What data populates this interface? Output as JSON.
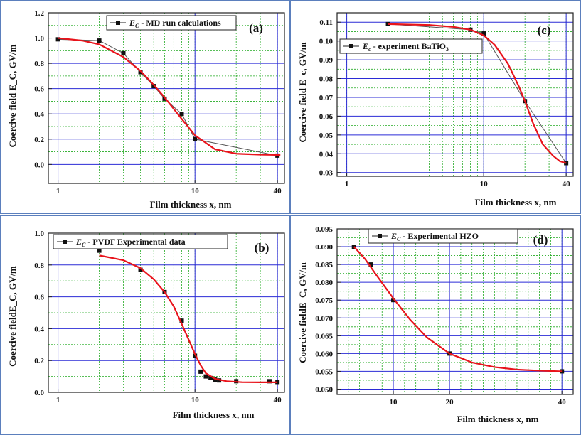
{
  "figure": {
    "accent_colors": {
      "fit_line": "#e8131b",
      "data_line": "#555555",
      "marker": "#111111",
      "major_grid": "#2b2bd6",
      "minor_grid": "#22aa22",
      "frame": "#5b7fbd"
    }
  },
  "chart_data": [
    {
      "id": "a",
      "type": "line",
      "panel_label": "(a)",
      "ylabel": "Coercive field E_C, GV/m",
      "xlabel": "Film thickness x, nm",
      "xscale": "log",
      "xlim": [
        0.85,
        45
      ],
      "ylim": [
        -0.15,
        1.2
      ],
      "xticks": [
        1,
        10,
        40
      ],
      "xtick_labels": [
        "1",
        "10",
        "40"
      ],
      "yticks": [
        0.0,
        0.2,
        0.4,
        0.6,
        0.8,
        1.0,
        1.2
      ],
      "ytick_labels": [
        "0.0",
        "0.2",
        "0.4",
        "0.6",
        "0.8",
        "1.0",
        "1.2"
      ],
      "legend": {
        "prefix": "E",
        "sub": "C",
        "suffix": " - MD run calculations",
        "position": "top-center"
      },
      "grid": true,
      "series": [
        {
          "name": "E_C - MD run calculations",
          "kind": "markers-line",
          "x": [
            1,
            2,
            3,
            4,
            5,
            6,
            8,
            10,
            40
          ],
          "y": [
            0.99,
            0.98,
            0.88,
            0.73,
            0.62,
            0.52,
            0.4,
            0.2,
            0.07
          ]
        },
        {
          "name": "fit",
          "kind": "fit",
          "x": [
            1,
            1.5,
            2,
            3,
            4,
            5,
            6,
            8,
            10,
            14,
            20,
            30,
            42
          ],
          "y": [
            1.0,
            0.98,
            0.95,
            0.85,
            0.74,
            0.63,
            0.53,
            0.36,
            0.23,
            0.12,
            0.085,
            0.078,
            0.075
          ]
        }
      ]
    },
    {
      "id": "c",
      "type": "line",
      "panel_label": "(c)",
      "ylabel": "Coercive field E_c, GV/m",
      "xlabel": "Film thickness x, nm",
      "xscale": "log",
      "xlim": [
        0.85,
        45
      ],
      "ylim": [
        0.028,
        0.115
      ],
      "xticks": [
        1,
        10,
        40
      ],
      "xtick_labels": [
        "1",
        "10",
        "40"
      ],
      "yticks": [
        0.03,
        0.04,
        0.05,
        0.06,
        0.07,
        0.08,
        0.09,
        0.1,
        0.11
      ],
      "ytick_labels": [
        "0.03",
        "0.04",
        "0.05",
        "0.06",
        "0.07",
        "0.08",
        "0.09",
        "0.10",
        "0.11"
      ],
      "legend": {
        "prefix": "E",
        "sub": "c",
        "suffix": " - experiment BaTiO",
        "suffix_sub": "3",
        "position": "top-left"
      },
      "grid": true,
      "series": [
        {
          "name": "E_c - experiment BaTiO3",
          "kind": "markers-line",
          "x": [
            2,
            8,
            10,
            20,
            40
          ],
          "y": [
            0.109,
            0.106,
            0.104,
            0.068,
            0.035
          ]
        },
        {
          "name": "fit",
          "kind": "fit",
          "x": [
            2,
            4,
            6,
            8,
            10,
            12,
            15,
            18,
            20,
            23,
            27,
            32,
            36,
            40
          ],
          "y": [
            0.109,
            0.1085,
            0.1075,
            0.106,
            0.103,
            0.098,
            0.088,
            0.076,
            0.068,
            0.056,
            0.045,
            0.039,
            0.036,
            0.035
          ]
        }
      ]
    },
    {
      "id": "b",
      "type": "line",
      "panel_label": "(b)",
      "ylabel": "Coercive fieldE_C, GV/m",
      "xlabel": "Film thickness x, nm",
      "xscale": "log",
      "xlim": [
        0.85,
        45
      ],
      "ylim": [
        0.0,
        1.0
      ],
      "xticks": [
        1,
        10,
        40
      ],
      "xtick_labels": [
        "1",
        "10",
        "40"
      ],
      "yticks": [
        0.0,
        0.2,
        0.4,
        0.6,
        0.8,
        1.0
      ],
      "ytick_labels": [
        "0.0",
        "0.2",
        "0.4",
        "0.6",
        "0.8",
        "1.0"
      ],
      "legend": {
        "prefix": "E",
        "sub": "C",
        "suffix": " -  PVDF Experimental data",
        "position": "top-center"
      },
      "grid": true,
      "series": [
        {
          "name": "E_C - PVDF Experimental data",
          "kind": "markers",
          "x": [
            2,
            4,
            6,
            8,
            10,
            11,
            12,
            13,
            14,
            15,
            20,
            35,
            40
          ],
          "y": [
            0.89,
            0.77,
            0.63,
            0.45,
            0.23,
            0.13,
            0.1,
            0.09,
            0.08,
            0.075,
            0.07,
            0.07,
            0.065
          ]
        },
        {
          "name": "fit",
          "kind": "fit",
          "x": [
            2,
            3,
            4,
            5,
            6,
            7,
            8,
            9,
            10,
            11,
            12,
            14,
            17,
            22,
            30,
            40
          ],
          "y": [
            0.86,
            0.83,
            0.78,
            0.71,
            0.63,
            0.54,
            0.43,
            0.33,
            0.24,
            0.17,
            0.12,
            0.085,
            0.07,
            0.064,
            0.063,
            0.063
          ]
        }
      ]
    },
    {
      "id": "d",
      "type": "line",
      "panel_label": "(d)",
      "ylabel": "Coercive fieldE_C, GV/m",
      "xlabel": "Film thickness x, nm",
      "xscale": "linear",
      "xlim": [
        0,
        42
      ],
      "ylim": [
        0.0485,
        0.095
      ],
      "xticks": [
        10,
        20,
        40
      ],
      "xtick_labels": [
        "10",
        "20",
        "40"
      ],
      "yticks": [
        0.05,
        0.055,
        0.06,
        0.065,
        0.07,
        0.075,
        0.08,
        0.085,
        0.09,
        0.095
      ],
      "ytick_labels": [
        "0.050",
        "0.055",
        "0.060",
        "0.065",
        "0.070",
        "0.075",
        "0.080",
        "0.085",
        "0.090",
        "0.095"
      ],
      "legend": {
        "prefix": "E",
        "sub": "C",
        "suffix": " -  Experimental HZO",
        "position": "top-left"
      },
      "grid": true,
      "series": [
        {
          "name": "E_C - Experimental HZO",
          "kind": "markers",
          "x": [
            3,
            6,
            10,
            20,
            40
          ],
          "y": [
            0.09,
            0.085,
            0.075,
            0.06,
            0.055
          ]
        },
        {
          "name": "fit",
          "kind": "fit",
          "x": [
            3,
            5,
            7,
            10,
            13,
            16,
            20,
            24,
            28,
            32,
            36,
            40
          ],
          "y": [
            0.09,
            0.0865,
            0.082,
            0.0755,
            0.0695,
            0.0645,
            0.06,
            0.0575,
            0.0562,
            0.0555,
            0.0552,
            0.055
          ]
        }
      ]
    }
  ]
}
